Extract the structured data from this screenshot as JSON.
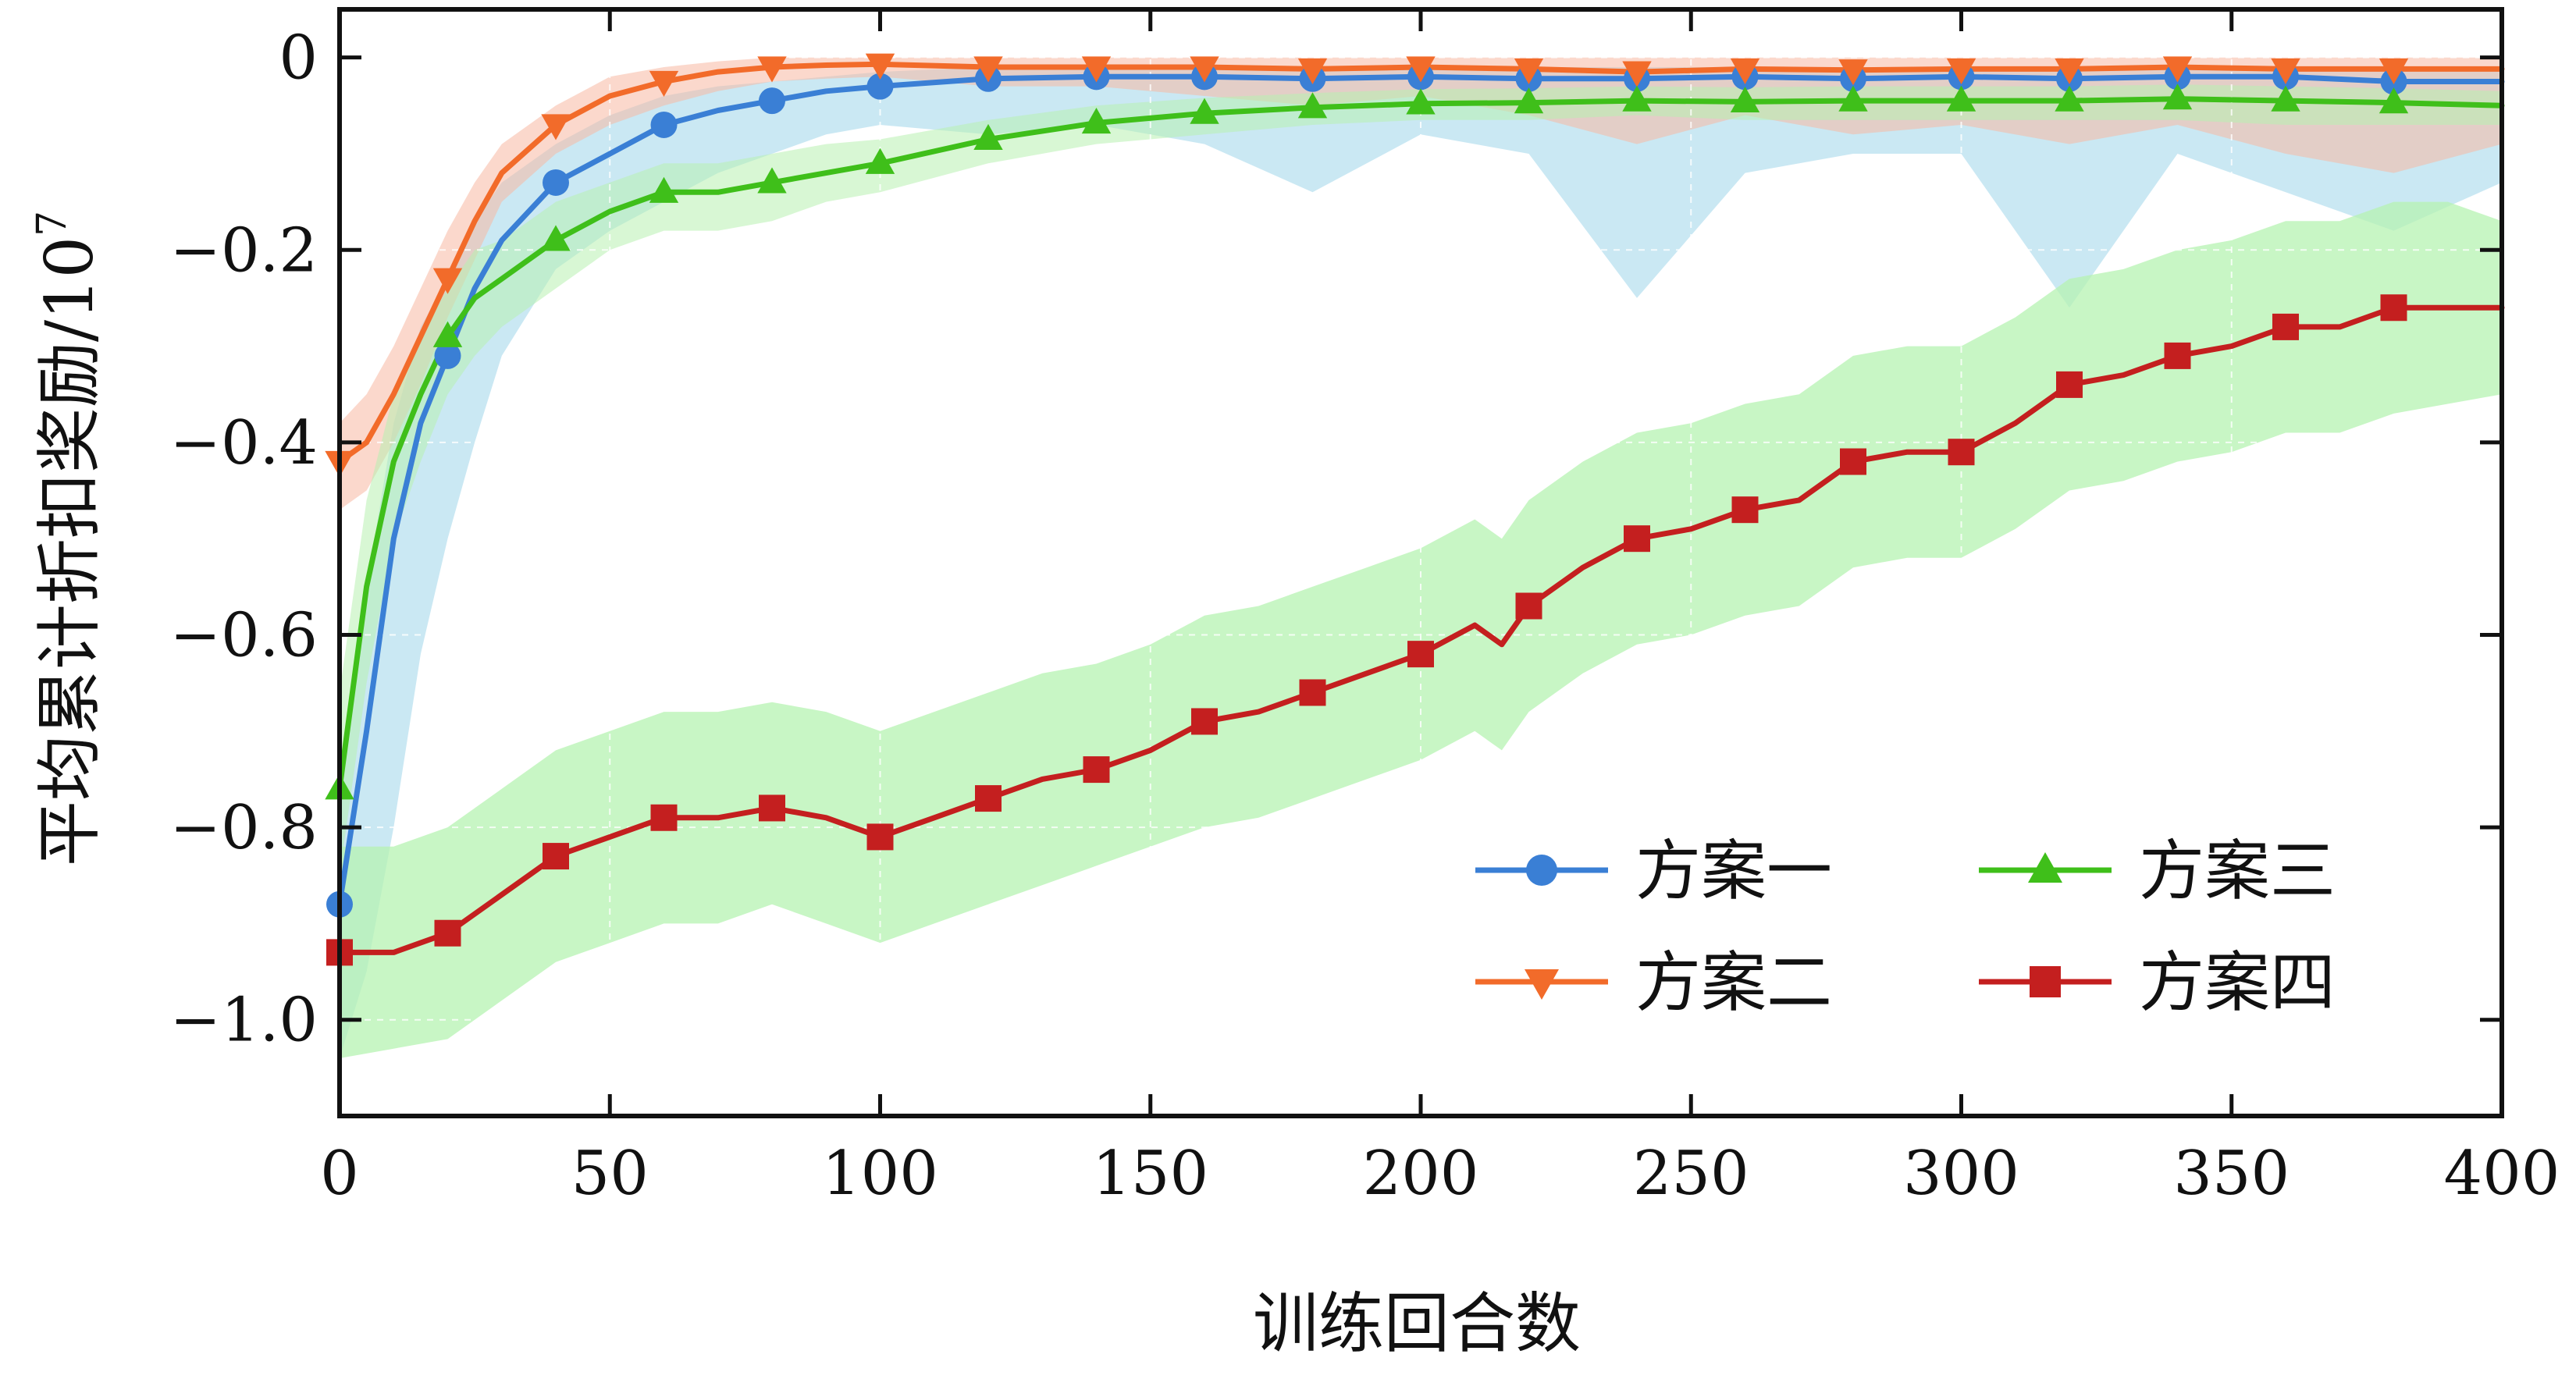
{
  "chart_data": {
    "type": "line",
    "title": "",
    "xlabel": "训练回合数",
    "ylabel": "平均累计折扣奖励/10",
    "ylabel_superscript": "7",
    "xlim": [
      0,
      400
    ],
    "ylim": [
      -1.1,
      0.05
    ],
    "x_ticks": [
      0,
      50,
      100,
      150,
      200,
      250,
      300,
      350,
      400
    ],
    "x_tick_labels": [
      "0",
      "50",
      "100",
      "150",
      "200",
      "250",
      "300",
      "350",
      "400"
    ],
    "y_ticks": [
      0,
      -0.2,
      -0.4,
      -0.6,
      -0.8,
      -1.0
    ],
    "y_tick_labels": [
      "0",
      "−0.2",
      "−0.4",
      "−0.6",
      "−0.8",
      "−1.0"
    ],
    "grid": true,
    "legend_position": "bottom-right",
    "marker_every": 20,
    "series": [
      {
        "name": "方案一",
        "color": "#3a7fd5",
        "band_color": "#9fd6ea",
        "marker": "circle",
        "x": [
          0,
          5,
          10,
          15,
          20,
          25,
          30,
          40,
          50,
          60,
          70,
          80,
          90,
          100,
          120,
          140,
          160,
          180,
          200,
          220,
          240,
          260,
          280,
          300,
          320,
          340,
          360,
          380,
          400
        ],
        "y": [
          -0.88,
          -0.7,
          -0.5,
          -0.38,
          -0.31,
          -0.24,
          -0.19,
          -0.13,
          -0.1,
          -0.07,
          -0.055,
          -0.045,
          -0.035,
          -0.03,
          -0.022,
          -0.02,
          -0.02,
          -0.022,
          -0.02,
          -0.022,
          -0.022,
          -0.02,
          -0.022,
          -0.02,
          -0.022,
          -0.02,
          -0.02,
          -0.025,
          -0.025
        ],
        "band_lower": [
          -1.04,
          -0.95,
          -0.8,
          -0.62,
          -0.5,
          -0.4,
          -0.31,
          -0.22,
          -0.18,
          -0.15,
          -0.12,
          -0.1,
          -0.08,
          -0.07,
          -0.08,
          -0.07,
          -0.09,
          -0.14,
          -0.08,
          -0.1,
          -0.25,
          -0.12,
          -0.1,
          -0.1,
          -0.26,
          -0.1,
          -0.14,
          -0.18,
          -0.13
        ],
        "band_upper": [
          -0.75,
          -0.55,
          -0.38,
          -0.28,
          -0.23,
          -0.17,
          -0.13,
          -0.09,
          -0.06,
          -0.04,
          -0.03,
          -0.025,
          -0.02,
          -0.015,
          -0.01,
          -0.01,
          -0.01,
          -0.01,
          -0.01,
          -0.01,
          -0.01,
          -0.01,
          -0.01,
          -0.01,
          -0.01,
          -0.01,
          -0.01,
          -0.01,
          -0.01
        ]
      },
      {
        "name": "方案二",
        "color": "#f26b2a",
        "band_color": "#f7b8a2",
        "marker": "triangle-down",
        "x": [
          0,
          5,
          10,
          15,
          20,
          25,
          30,
          40,
          50,
          60,
          70,
          80,
          90,
          100,
          120,
          140,
          160,
          180,
          200,
          220,
          240,
          260,
          280,
          300,
          320,
          340,
          360,
          380,
          400
        ],
        "y": [
          -0.42,
          -0.4,
          -0.35,
          -0.29,
          -0.23,
          -0.17,
          -0.12,
          -0.07,
          -0.04,
          -0.025,
          -0.015,
          -0.01,
          -0.008,
          -0.007,
          -0.01,
          -0.01,
          -0.01,
          -0.012,
          -0.01,
          -0.012,
          -0.015,
          -0.012,
          -0.013,
          -0.012,
          -0.012,
          -0.01,
          -0.012,
          -0.012,
          -0.012
        ],
        "band_lower": [
          -0.47,
          -0.45,
          -0.4,
          -0.34,
          -0.27,
          -0.21,
          -0.15,
          -0.1,
          -0.07,
          -0.05,
          -0.035,
          -0.025,
          -0.022,
          -0.02,
          -0.03,
          -0.03,
          -0.04,
          -0.05,
          -0.04,
          -0.06,
          -0.09,
          -0.06,
          -0.08,
          -0.07,
          -0.09,
          -0.07,
          -0.1,
          -0.12,
          -0.09
        ],
        "band_upper": [
          -0.38,
          -0.35,
          -0.3,
          -0.24,
          -0.18,
          -0.13,
          -0.09,
          -0.05,
          -0.02,
          -0.01,
          -0.004,
          0.0,
          0.0,
          0.0,
          0.0,
          0.0,
          0.0,
          0.0,
          0.0,
          0.0,
          0.0,
          0.0,
          0.0,
          0.0,
          0.0,
          0.0,
          0.0,
          0.0,
          0.0
        ]
      },
      {
        "name": "方案三",
        "color": "#3fbf1a",
        "band_color": "#b8f0b0",
        "marker": "triangle-up",
        "x": [
          0,
          5,
          10,
          15,
          20,
          25,
          30,
          40,
          50,
          60,
          70,
          80,
          90,
          100,
          120,
          140,
          160,
          180,
          200,
          220,
          240,
          260,
          280,
          300,
          320,
          340,
          360,
          380,
          400
        ],
        "y": [
          -0.76,
          -0.55,
          -0.42,
          -0.35,
          -0.29,
          -0.25,
          -0.23,
          -0.19,
          -0.16,
          -0.14,
          -0.14,
          -0.13,
          -0.12,
          -0.11,
          -0.085,
          -0.068,
          -0.058,
          -0.052,
          -0.048,
          -0.047,
          -0.045,
          -0.046,
          -0.045,
          -0.045,
          -0.045,
          -0.043,
          -0.045,
          -0.047,
          -0.05
        ],
        "band_lower": [
          -0.85,
          -0.65,
          -0.5,
          -0.42,
          -0.35,
          -0.31,
          -0.28,
          -0.24,
          -0.2,
          -0.18,
          -0.18,
          -0.17,
          -0.15,
          -0.14,
          -0.11,
          -0.09,
          -0.08,
          -0.07,
          -0.065,
          -0.065,
          -0.06,
          -0.065,
          -0.065,
          -0.065,
          -0.065,
          -0.065,
          -0.07,
          -0.07,
          -0.07
        ],
        "band_upper": [
          -0.66,
          -0.46,
          -0.35,
          -0.29,
          -0.24,
          -0.2,
          -0.19,
          -0.15,
          -0.13,
          -0.11,
          -0.11,
          -0.1,
          -0.09,
          -0.085,
          -0.065,
          -0.05,
          -0.042,
          -0.037,
          -0.033,
          -0.032,
          -0.03,
          -0.031,
          -0.03,
          -0.03,
          -0.03,
          -0.028,
          -0.03,
          -0.032,
          -0.035
        ]
      },
      {
        "name": "方案四",
        "color": "#c41f1f",
        "band_color": "#b6f3b2",
        "marker": "square",
        "x": [
          0,
          10,
          20,
          30,
          40,
          50,
          60,
          70,
          80,
          90,
          100,
          110,
          120,
          130,
          140,
          150,
          160,
          170,
          180,
          190,
          200,
          210,
          215,
          220,
          230,
          240,
          250,
          260,
          270,
          280,
          290,
          300,
          310,
          320,
          330,
          340,
          350,
          360,
          370,
          380,
          390,
          400
        ],
        "y": [
          -0.93,
          -0.93,
          -0.91,
          -0.87,
          -0.83,
          -0.81,
          -0.79,
          -0.79,
          -0.78,
          -0.79,
          -0.81,
          -0.79,
          -0.77,
          -0.75,
          -0.74,
          -0.72,
          -0.69,
          -0.68,
          -0.66,
          -0.64,
          -0.62,
          -0.59,
          -0.61,
          -0.57,
          -0.53,
          -0.5,
          -0.49,
          -0.47,
          -0.46,
          -0.42,
          -0.41,
          -0.41,
          -0.38,
          -0.34,
          -0.33,
          -0.31,
          -0.3,
          -0.28,
          -0.28,
          -0.26,
          -0.26,
          -0.26
        ],
        "band_lower": [
          -1.04,
          -1.03,
          -1.02,
          -0.98,
          -0.94,
          -0.92,
          -0.9,
          -0.9,
          -0.88,
          -0.9,
          -0.92,
          -0.9,
          -0.88,
          -0.86,
          -0.84,
          -0.82,
          -0.8,
          -0.79,
          -0.77,
          -0.75,
          -0.73,
          -0.7,
          -0.72,
          -0.68,
          -0.64,
          -0.61,
          -0.6,
          -0.58,
          -0.57,
          -0.53,
          -0.52,
          -0.52,
          -0.49,
          -0.45,
          -0.44,
          -0.42,
          -0.41,
          -0.39,
          -0.39,
          -0.37,
          -0.36,
          -0.35
        ],
        "band_upper": [
          -0.82,
          -0.82,
          -0.8,
          -0.76,
          -0.72,
          -0.7,
          -0.68,
          -0.68,
          -0.67,
          -0.68,
          -0.7,
          -0.68,
          -0.66,
          -0.64,
          -0.63,
          -0.61,
          -0.58,
          -0.57,
          -0.55,
          -0.53,
          -0.51,
          -0.48,
          -0.5,
          -0.46,
          -0.42,
          -0.39,
          -0.38,
          -0.36,
          -0.35,
          -0.31,
          -0.3,
          -0.3,
          -0.27,
          -0.23,
          -0.22,
          -0.2,
          -0.19,
          -0.17,
          -0.17,
          -0.15,
          -0.15,
          -0.17
        ]
      }
    ]
  }
}
